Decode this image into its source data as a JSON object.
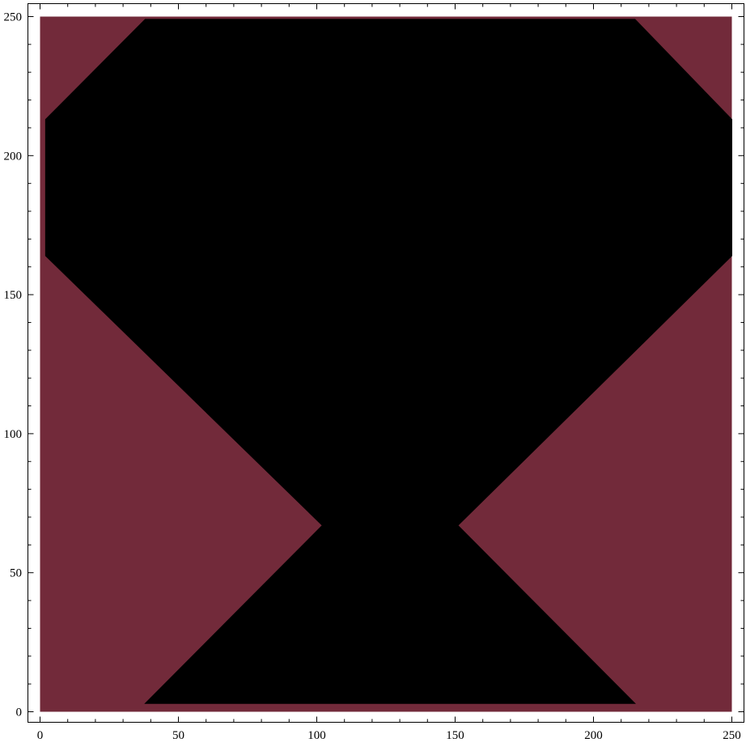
{
  "chart_data": {
    "type": "region",
    "title": "",
    "xlabel": "",
    "ylabel": "",
    "xlim": [
      0,
      250
    ],
    "ylim": [
      0,
      250
    ],
    "grid": false,
    "background_color": "#722a3a",
    "region_color": "#000000",
    "x_ticks": [
      0,
      50,
      100,
      150,
      200,
      250
    ],
    "y_ticks": [
      0,
      50,
      100,
      150,
      200,
      250
    ],
    "x_tick_labels": [
      "0",
      "50",
      "100",
      "150",
      "200",
      "250"
    ],
    "y_tick_labels": [
      "0",
      "50",
      "100",
      "150",
      "200",
      "250"
    ],
    "series": [
      {
        "values": [
          [
            38,
            3
          ],
          [
            102,
            67
          ],
          [
            2,
            164
          ],
          [
            2,
            213
          ],
          [
            38,
            249
          ],
          [
            215,
            249
          ],
          [
            250,
            213
          ],
          [
            250,
            164
          ],
          [
            151,
            67
          ],
          [
            215,
            3
          ]
        ]
      }
    ]
  }
}
